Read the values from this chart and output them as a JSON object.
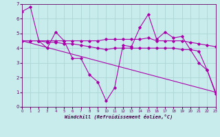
{
  "xlabel": "Windchill (Refroidissement éolien,°C)",
  "bg_color": "#c8ecec",
  "line_color": "#aa00aa",
  "grid_color": "#b0d8d8",
  "series": [
    {
      "x": [
        0,
        1,
        2,
        3,
        4,
        5,
        6,
        7,
        8,
        9,
        10,
        11,
        12,
        13,
        14,
        15,
        16,
        17,
        18,
        19,
        20,
        21,
        22,
        23
      ],
      "y": [
        6.5,
        6.8,
        4.5,
        4.0,
        5.1,
        4.5,
        3.3,
        3.3,
        2.2,
        1.7,
        0.4,
        1.3,
        4.2,
        4.1,
        5.4,
        6.3,
        4.6,
        5.1,
        4.7,
        4.8,
        3.9,
        3.0,
        2.5,
        0.9
      ]
    },
    {
      "x": [
        0,
        1,
        2,
        3,
        4,
        5,
        6,
        7,
        8,
        9,
        10,
        11,
        12,
        13,
        14,
        15,
        16,
        17,
        18,
        19,
        20,
        21,
        22,
        23
      ],
      "y": [
        4.5,
        4.5,
        4.5,
        4.5,
        4.5,
        4.5,
        4.5,
        4.5,
        4.5,
        4.5,
        4.6,
        4.6,
        4.6,
        4.6,
        4.6,
        4.7,
        4.5,
        4.5,
        4.5,
        4.5,
        4.4,
        4.3,
        4.2,
        4.1
      ]
    },
    {
      "x": [
        0,
        1,
        2,
        3,
        4,
        5,
        6,
        7,
        8,
        9,
        10,
        11,
        12,
        13,
        14,
        15,
        16,
        17,
        18,
        19,
        20,
        21,
        22,
        23
      ],
      "y": [
        4.5,
        4.5,
        4.5,
        4.4,
        4.4,
        4.3,
        4.3,
        4.2,
        4.1,
        4.0,
        3.9,
        4.0,
        4.0,
        4.0,
        4.0,
        4.0,
        4.0,
        4.0,
        4.0,
        3.9,
        3.9,
        3.8,
        2.5,
        1.0
      ]
    },
    {
      "x": [
        0,
        23
      ],
      "y": [
        4.5,
        1.0
      ]
    }
  ],
  "ylim": [
    0,
    7
  ],
  "xlim": [
    0,
    23
  ],
  "yticks": [
    0,
    1,
    2,
    3,
    4,
    5,
    6,
    7
  ],
  "xticks": [
    0,
    1,
    2,
    3,
    4,
    5,
    6,
    7,
    8,
    9,
    10,
    11,
    12,
    13,
    14,
    15,
    16,
    17,
    18,
    19,
    20,
    21,
    22,
    23
  ]
}
